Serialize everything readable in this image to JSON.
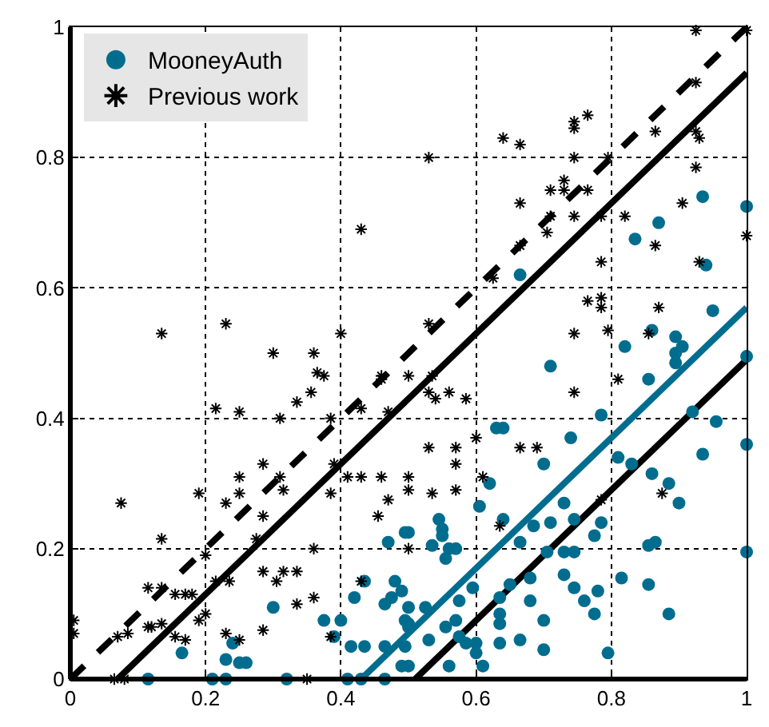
{
  "chart_data": {
    "type": "scatter",
    "xlim": [
      0,
      1
    ],
    "ylim": [
      0,
      1
    ],
    "xticks": [
      0,
      0.2,
      0.4,
      0.6,
      0.8,
      1
    ],
    "yticks": [
      0,
      0.2,
      0.4,
      0.6,
      0.8,
      1
    ],
    "grid": true,
    "legend": "top left",
    "series": [
      {
        "name": "MooneyAuth",
        "color": "#006d8f",
        "marker": "circle",
        "x": [
          0.935,
          1.0,
          0.87,
          0.835,
          0.94,
          0.665,
          0.95,
          0.86,
          0.895,
          0.905,
          0.82,
          0.895,
          0.895,
          1.0,
          0.71,
          0.855,
          0.785,
          0.92,
          0.955,
          0.63,
          0.64,
          0.74,
          0.81,
          0.83,
          0.7,
          0.935,
          1.0,
          0.62,
          0.86,
          0.885,
          0.9,
          0.605,
          0.73,
          0.785,
          0.745,
          0.775,
          0.71,
          0.685,
          0.64,
          0.545,
          0.55,
          0.55,
          0.535,
          0.5,
          0.665,
          0.56,
          0.57,
          0.555,
          0.855,
          0.865,
          1.0,
          0.705,
          0.73,
          0.745,
          0.73,
          0.745,
          0.76,
          0.775,
          0.78,
          0.815,
          0.855,
          0.885,
          0.68,
          0.65,
          0.595,
          0.635,
          0.68,
          0.575,
          0.635,
          0.635,
          0.7,
          0.525,
          0.5,
          0.57,
          0.555,
          0.5,
          0.5,
          0.53,
          0.575,
          0.585,
          0.6,
          0.6,
          0.635,
          0.665,
          0.7,
          0.795,
          0.56,
          0.61,
          0.5,
          0.49,
          0.495,
          0.47,
          0.435,
          0.42,
          0.48,
          0.475,
          0.465,
          0.495,
          0.3,
          0.375,
          0.4,
          0.415,
          0.435,
          0.465,
          0.39,
          0.495,
          0.49,
          0.465,
          0.41,
          0.43,
          0.32,
          0.21,
          0.23,
          0.115,
          0.165,
          0.24,
          0.23,
          0.25,
          0.26
        ],
        "values": [
          0.74,
          0.725,
          0.7,
          0.675,
          0.635,
          0.62,
          0.565,
          0.535,
          0.525,
          0.51,
          0.51,
          0.5,
          0.485,
          0.495,
          0.48,
          0.46,
          0.405,
          0.41,
          0.395,
          0.385,
          0.385,
          0.37,
          0.34,
          0.33,
          0.33,
          0.345,
          0.36,
          0.3,
          0.315,
          0.3,
          0.27,
          0.265,
          0.27,
          0.24,
          0.245,
          0.22,
          0.24,
          0.235,
          0.245,
          0.245,
          0.23,
          0.22,
          0.205,
          0.225,
          0.21,
          0.2,
          0.2,
          0.185,
          0.205,
          0.21,
          0.195,
          0.195,
          0.195,
          0.195,
          0.16,
          0.14,
          0.12,
          0.1,
          0.135,
          0.155,
          0.145,
          0.1,
          0.155,
          0.145,
          0.14,
          0.125,
          0.12,
          0.12,
          0.1,
          0.085,
          0.09,
          0.11,
          0.11,
          0.09,
          0.08,
          0.085,
          0.08,
          0.06,
          0.065,
          0.055,
          0.055,
          0.04,
          0.055,
          0.06,
          0.045,
          0.04,
          0.02,
          0.02,
          0.02,
          0.135,
          0.225,
          0.21,
          0.15,
          0.125,
          0.15,
          0.125,
          0.115,
          0.09,
          0.11,
          0.09,
          0.09,
          0.05,
          0.05,
          0.05,
          0.065,
          0.05,
          0.02,
          0,
          0,
          0,
          0,
          0,
          0,
          0,
          0.04,
          0.055,
          0.03,
          0.025,
          0.025
        ]
      },
      {
        "name": "Previous work",
        "color": "#000000",
        "marker": "cross",
        "x": [
          0.3,
          0.36,
          0.365,
          0.375,
          0.356,
          0.335,
          0.46,
          0.46,
          0.43,
          0.47,
          0.215,
          0.25,
          0.31,
          0.385,
          0.285,
          0.39,
          0.41,
          0.43,
          0.46,
          0.31,
          0.315,
          0.25,
          0.25,
          0.19,
          0.23,
          0.385,
          0.47,
          0.455,
          0.285,
          0.075,
          0.135,
          0.275,
          0.2,
          0.36,
          0.215,
          0.235,
          0.285,
          0.305,
          0.315,
          0.335,
          0.115,
          0.135,
          0.155,
          0.17,
          0.18,
          0.19,
          0.2,
          0.335,
          0.36,
          0.43,
          0.115,
          0.12,
          0.135,
          0.07,
          0.085,
          0.285,
          0.23,
          0.25,
          0.155,
          0.17,
          0.385,
          0.005,
          0.005,
          0.065,
          0.08,
          0.35,
          0.43,
          0.135,
          0.23,
          0.4,
          0.925,
          1.0,
          0.925,
          0.765,
          0.745,
          0.745,
          0.865,
          0.925,
          0.93,
          0.64,
          0.665,
          0.53,
          0.745,
          0.795,
          0.925,
          0.73,
          0.71,
          0.73,
          0.765,
          0.665,
          0.905,
          0.71,
          0.745,
          0.785,
          0.82,
          0.705,
          1.0,
          0.665,
          0.865,
          0.785,
          0.93,
          0.625,
          0.765,
          0.785,
          0.785,
          0.87,
          0.53,
          0.745,
          0.795,
          0.855,
          0.5,
          0.535,
          0.53,
          0.54,
          0.56,
          0.585,
          0.81,
          0.745,
          0.6,
          0.53,
          0.57,
          0.57,
          0.665,
          0.69,
          0.5,
          0.5,
          0.535,
          0.57,
          0.61,
          0.875,
          0.785,
          0.635,
          0.5
        ],
        "values": [
          0.5,
          0.5,
          0.47,
          0.465,
          0.44,
          0.425,
          0.465,
          0.46,
          0.415,
          0.41,
          0.415,
          0.41,
          0.4,
          0.4,
          0.33,
          0.33,
          0.31,
          0.31,
          0.31,
          0.31,
          0.29,
          0.31,
          0.285,
          0.285,
          0.27,
          0.285,
          0.275,
          0.25,
          0.25,
          0.27,
          0.215,
          0.215,
          0.19,
          0.2,
          0.15,
          0.15,
          0.165,
          0.15,
          0.165,
          0.165,
          0.14,
          0.14,
          0.13,
          0.13,
          0.13,
          0.09,
          0.1,
          0.115,
          0.125,
          0.15,
          0.08,
          0.08,
          0.085,
          0.065,
          0.07,
          0.075,
          0.07,
          0.06,
          0.065,
          0.06,
          0.065,
          0.09,
          0.07,
          0,
          0,
          0,
          0.69,
          0.53,
          0.545,
          0.53,
          0.995,
          0.995,
          0.915,
          0.865,
          0.855,
          0.845,
          0.84,
          0.84,
          0.83,
          0.83,
          0.82,
          0.8,
          0.8,
          0.8,
          0.785,
          0.765,
          0.75,
          0.75,
          0.75,
          0.73,
          0.73,
          0.71,
          0.71,
          0.71,
          0.71,
          0.685,
          0.68,
          0.665,
          0.665,
          0.64,
          0.64,
          0.615,
          0.58,
          0.585,
          0.57,
          0.57,
          0.545,
          0.53,
          0.535,
          0.53,
          0.465,
          0.465,
          0.44,
          0.43,
          0.44,
          0.43,
          0.46,
          0.44,
          0.37,
          0.355,
          0.355,
          0.33,
          0.355,
          0.355,
          0.31,
          0.29,
          0.285,
          0.29,
          0.31,
          0.285,
          0.275,
          0.235,
          0.2
        ]
      },
      {
        "type": "line",
        "color": "#000000",
        "line_style": "dashed",
        "x": [
          0,
          1
        ],
        "values": [
          0,
          1
        ]
      },
      {
        "type": "line",
        "color": "#000000",
        "line_style": "solid",
        "x": [
          0.07,
          1
        ],
        "values": [
          0,
          0.93
        ]
      },
      {
        "type": "line",
        "color": "#000000",
        "line_style": "solid",
        "x": [
          0.51,
          1
        ],
        "values": [
          0,
          0.49
        ]
      },
      {
        "type": "line",
        "color": "#006d8f",
        "line_style": "solid",
        "x": [
          0.43,
          1
        ],
        "values": [
          0,
          0.57
        ]
      }
    ]
  }
}
